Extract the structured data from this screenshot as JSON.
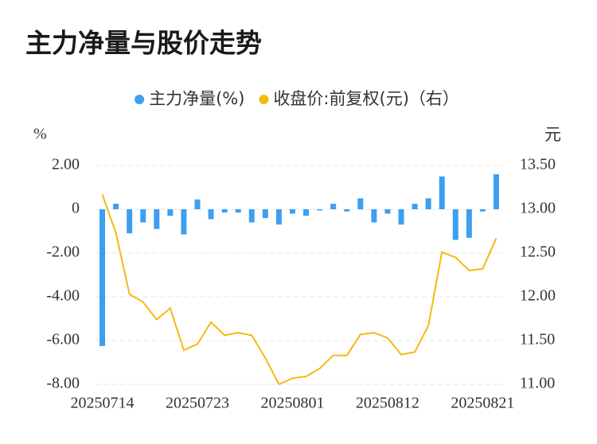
{
  "chart_data": {
    "type": "bar",
    "title": "主力净量与股价走势",
    "y_label": "%",
    "y2_label": "元",
    "categories": [
      "20250714",
      null,
      null,
      null,
      null,
      null,
      null,
      "20250723",
      null,
      null,
      null,
      null,
      null,
      null,
      "20250801",
      null,
      null,
      null,
      null,
      null,
      null,
      "20250812",
      null,
      null,
      null,
      null,
      null,
      null,
      "20250821",
      null
    ],
    "series": [
      {
        "name": "主力净量(%)",
        "type": "bar",
        "color": "#3d9ff0",
        "values": [
          -6.25,
          0.25,
          -1.1,
          -0.6,
          -0.9,
          -0.3,
          -1.15,
          0.45,
          -0.45,
          -0.15,
          -0.15,
          -0.6,
          -0.4,
          -0.7,
          -0.2,
          -0.3,
          -0.05,
          0.25,
          -0.1,
          0.5,
          -0.6,
          -0.2,
          -0.7,
          0.25,
          0.5,
          1.5,
          -1.4,
          -1.3,
          -0.1,
          1.6
        ]
      },
      {
        "name": "收盘价:前复权(元)（右）",
        "type": "line",
        "axis": "y2",
        "color": "#f5b914",
        "values": [
          13.17,
          12.73,
          12.03,
          11.94,
          11.74,
          11.87,
          11.39,
          11.46,
          11.71,
          11.56,
          11.59,
          11.56,
          11.3,
          11.0,
          11.07,
          11.09,
          11.18,
          11.33,
          11.33,
          11.57,
          11.59,
          11.53,
          11.34,
          11.37,
          11.67,
          12.51,
          12.45,
          12.3,
          12.32,
          12.67
        ]
      }
    ],
    "ylim": [
      -8,
      2
    ],
    "yticks": [
      {
        "value": 2,
        "label": "2.00"
      },
      0,
      {
        "value": -2,
        "label": "-2.00"
      },
      {
        "value": -4,
        "label": "-4.00"
      },
      {
        "value": -6,
        "label": "-6.00"
      },
      {
        "value": -8,
        "label": "-8.00"
      }
    ],
    "y2lim": [
      11,
      13.5
    ],
    "y2ticks": [
      {
        "value": 13.5,
        "label": "13.50"
      },
      {
        "value": 13,
        "label": "13.00"
      },
      {
        "value": 12.5,
        "label": "12.50"
      },
      {
        "value": 12,
        "label": "12.00"
      },
      {
        "value": 11.5,
        "label": "11.50"
      },
      {
        "value": 11,
        "label": "11.00"
      }
    ],
    "grid": true
  }
}
